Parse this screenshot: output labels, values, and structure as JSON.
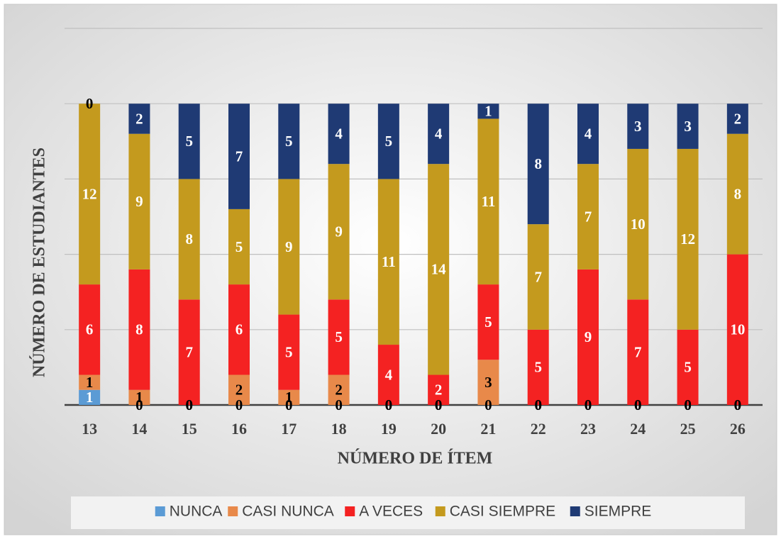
{
  "chart_data": {
    "type": "stacked_bar",
    "x_label": "NÚMERO DE ÍTEM",
    "y_label": "NÚMERO DE ESTUDIANTES",
    "categories": [
      "13",
      "14",
      "15",
      "16",
      "17",
      "18",
      "19",
      "20",
      "21",
      "22",
      "23",
      "24",
      "25",
      "26"
    ],
    "series": [
      {
        "name": "NUNCA",
        "color": "#5b9bd5",
        "values": [
          1,
          0,
          0,
          0,
          0,
          0,
          0,
          0,
          0,
          0,
          0,
          0,
          0,
          0
        ]
      },
      {
        "name": "CASI NUNCA",
        "color": "#e8894a",
        "values": [
          1,
          1,
          0,
          2,
          1,
          2,
          0,
          0,
          3,
          0,
          0,
          0,
          0,
          0
        ]
      },
      {
        "name": "A VECES",
        "color": "#f42222",
        "values": [
          6,
          8,
          7,
          6,
          5,
          5,
          4,
          2,
          5,
          5,
          9,
          7,
          5,
          10
        ]
      },
      {
        "name": "CASI SIEMPRE",
        "color": "#c49a1e",
        "values": [
          12,
          9,
          8,
          5,
          9,
          9,
          11,
          14,
          11,
          7,
          7,
          10,
          12,
          8
        ]
      },
      {
        "name": "SIEMPRE",
        "color": "#1f3a74",
        "values": [
          0,
          2,
          5,
          7,
          5,
          4,
          5,
          4,
          1,
          8,
          4,
          3,
          3,
          2
        ]
      }
    ],
    "ylim": [
      0,
      25
    ],
    "yticks": [
      0,
      5,
      10,
      15,
      20,
      25
    ],
    "grid": true,
    "legend": "bottom"
  }
}
